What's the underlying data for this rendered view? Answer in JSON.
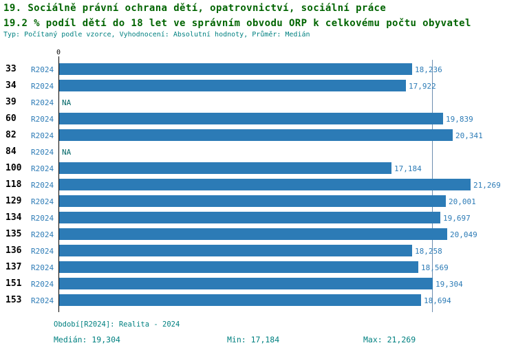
{
  "title": {
    "line1": "19. Sociálně právní ochrana dětí, opatrovnictví, sociální práce",
    "line2": "19.2 % podíl dětí do 18 let ve správním obvodu ORP k celkovému počtu obyvatel",
    "line3": "Typ: Počítaný podle vzorce, Vyhodnocení: Absolutní hodnoty, Průměr: Medián"
  },
  "chart_data": {
    "type": "bar",
    "orientation": "horizontal",
    "title": "19. Sociálně právní ochrana dětí, opatrovnictví, sociální práce",
    "subtitle": "19.2 % podíl dětí do 18 let ve správním obvodu ORP k celkovému počtu obyvatel",
    "series_label": "R2024",
    "axis_zero_label": "0",
    "categories": [
      "33",
      "34",
      "39",
      "60",
      "82",
      "84",
      "100",
      "118",
      "129",
      "134",
      "135",
      "136",
      "137",
      "151",
      "153"
    ],
    "values": [
      18236,
      17922,
      null,
      19839,
      20341,
      null,
      17184,
      21269,
      20001,
      19697,
      20049,
      18258,
      18569,
      19304,
      18694
    ],
    "value_labels": [
      "18,236",
      "17,922",
      "NA",
      "19,839",
      "20,341",
      "NA",
      "17,184",
      "21,269",
      "20,001",
      "19,697",
      "20,049",
      "18,258",
      "18,569",
      "19,304",
      "18,694"
    ],
    "xlim": [
      0,
      21269
    ],
    "median_value": 19304,
    "min_value": 17184,
    "max_value": 21269,
    "grid": false,
    "legend_position": "none"
  },
  "footer": {
    "period": "Období[R2024]: Realita - 2024",
    "median": "Medián: 19,304",
    "min": "Min: 17,184",
    "max": "Max: 21,269"
  },
  "colors": {
    "title_green": "#006400",
    "meta_teal": "#008080",
    "bar": "#2c7bb6",
    "value_label": "#2c7bb6",
    "series_label": "#2c7bb6",
    "median_line": "#6b8cae",
    "na_label": "#006666",
    "category_label": "#000000",
    "axis": "#000000",
    "background": "#ffffff"
  }
}
